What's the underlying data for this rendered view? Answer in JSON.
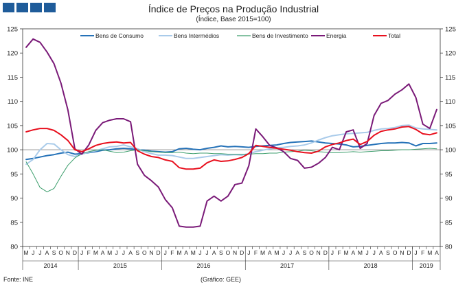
{
  "chart_data": {
    "type": "line",
    "title": "Índice de Preços na Produção Industrial",
    "subtitle": "(Índice, Base 2015=100)",
    "source": "Fonte: INE",
    "credit": "(Gráfico: GEE)",
    "ylim": [
      80,
      125
    ],
    "yticks": [
      80,
      85,
      90,
      95,
      100,
      105,
      110,
      115,
      120,
      125
    ],
    "months": [
      "M",
      "J",
      "J",
      "A",
      "S",
      "O",
      "N",
      "D",
      "J",
      "F",
      "M",
      "A",
      "M",
      "J",
      "J",
      "A",
      "S",
      "O",
      "N",
      "D",
      "J",
      "F",
      "M",
      "A",
      "M",
      "J",
      "J",
      "A",
      "S",
      "O",
      "N",
      "D",
      "J",
      "F",
      "M",
      "A",
      "M",
      "J",
      "J",
      "A",
      "S",
      "O",
      "N",
      "D",
      "J",
      "F",
      "M",
      "A",
      "M",
      "J",
      "J",
      "A",
      "S",
      "O",
      "N",
      "D",
      "J",
      "F",
      "M",
      "A"
    ],
    "years": [
      {
        "label": "2014",
        "start": 0,
        "end": 7
      },
      {
        "label": "2015",
        "start": 8,
        "end": 19
      },
      {
        "label": "2016",
        "start": 20,
        "end": 31
      },
      {
        "label": "2017",
        "start": 32,
        "end": 43
      },
      {
        "label": "2018",
        "start": 44,
        "end": 55
      },
      {
        "label": "2019",
        "start": 56,
        "end": 59
      }
    ],
    "series": [
      {
        "name": "Bens de Consumo",
        "color": "#2572b8",
        "width": 2,
        "values": [
          98.0,
          98.2,
          98.5,
          98.8,
          99.0,
          99.3,
          99.5,
          99.1,
          99.2,
          99.4,
          99.6,
          99.9,
          100.0,
          100.2,
          100.3,
          100.2,
          100.0,
          99.9,
          99.7,
          99.6,
          99.5,
          99.6,
          100.2,
          100.3,
          100.1,
          100.0,
          100.3,
          100.5,
          100.8,
          100.6,
          100.7,
          100.6,
          100.5,
          100.7,
          100.8,
          100.9,
          101.0,
          101.3,
          101.5,
          101.6,
          101.7,
          101.8,
          101.6,
          101.4,
          101.3,
          101.2,
          101.0,
          100.6,
          100.7,
          100.9,
          101.1,
          101.3,
          101.4,
          101.4,
          101.5,
          101.4,
          100.8,
          101.3,
          101.3,
          101.4
        ]
      },
      {
        "name": "Bens Intermédios",
        "color": "#a9cbea",
        "width": 2,
        "values": [
          97.0,
          98.0,
          100.0,
          101.3,
          101.2,
          100.0,
          99.0,
          98.6,
          99.1,
          99.5,
          99.8,
          100.2,
          100.6,
          100.7,
          101.0,
          100.6,
          100.2,
          99.6,
          99.2,
          98.9,
          98.9,
          98.8,
          98.5,
          98.2,
          98.2,
          98.4,
          98.6,
          98.8,
          99.0,
          98.9,
          99.0,
          98.9,
          99.2,
          99.6,
          99.9,
          100.2,
          100.4,
          100.5,
          100.7,
          100.8,
          101.0,
          101.4,
          102.0,
          102.5,
          102.9,
          103.1,
          103.3,
          103.4,
          103.5,
          103.6,
          104.0,
          104.3,
          104.4,
          104.6,
          105.0,
          105.1,
          104.5,
          104.3,
          104.2,
          104.1
        ]
      },
      {
        "name": "Bens de Investimento",
        "color": "#3c9e6c",
        "width": 1,
        "values": [
          97.5,
          95.0,
          92.2,
          91.3,
          92.0,
          94.5,
          96.8,
          98.3,
          99.2,
          99.6,
          99.9,
          100.0,
          99.7,
          99.4,
          99.5,
          99.8,
          100.0,
          99.8,
          99.6,
          99.5,
          99.4,
          99.4,
          99.5,
          99.3,
          99.2,
          99.3,
          99.3,
          99.2,
          99.2,
          99.1,
          99.1,
          99.1,
          99.1,
          99.2,
          99.2,
          99.3,
          99.3,
          99.5,
          99.6,
          99.7,
          99.9,
          99.8,
          99.6,
          99.5,
          99.4,
          99.4,
          99.5,
          99.6,
          99.5,
          99.6,
          99.7,
          99.8,
          99.8,
          99.9,
          100.0,
          100.0,
          100.1,
          100.2,
          100.3,
          100.2
        ]
      },
      {
        "name": "Energia",
        "color": "#7a1a78",
        "width": 2,
        "values": [
          121.2,
          122.9,
          122.2,
          120.2,
          117.8,
          113.8,
          108.2,
          100.2,
          99.1,
          101.0,
          104.0,
          105.6,
          106.1,
          106.4,
          106.4,
          105.8,
          97.0,
          94.7,
          93.6,
          92.3,
          89.7,
          88.0,
          84.2,
          84.0,
          84.0,
          84.2,
          89.4,
          90.4,
          89.4,
          90.4,
          92.8,
          93.1,
          96.7,
          104.3,
          102.7,
          100.9,
          100.4,
          99.6,
          98.2,
          97.8,
          96.2,
          96.4,
          97.2,
          98.4,
          100.5,
          100.0,
          103.7,
          104.1,
          100.3,
          101.3,
          107.1,
          109.6,
          110.2,
          111.5,
          112.4,
          113.6,
          110.8,
          105.3,
          104.4,
          108.3
        ]
      },
      {
        "name": "Total",
        "color": "#e8101e",
        "width": 2,
        "values": [
          103.7,
          104.1,
          104.4,
          104.4,
          104.0,
          103.1,
          101.9,
          100.0,
          99.6,
          100.2,
          100.9,
          101.3,
          101.5,
          101.6,
          101.4,
          101.5,
          99.8,
          99.1,
          98.6,
          98.4,
          97.9,
          97.6,
          96.3,
          96.0,
          96.0,
          96.2,
          97.3,
          97.9,
          97.6,
          97.7,
          98.0,
          98.4,
          99.2,
          100.9,
          100.7,
          100.5,
          100.3,
          100.1,
          99.9,
          99.6,
          99.4,
          99.3,
          99.7,
          100.6,
          101.1,
          101.4,
          101.9,
          102.2,
          101.1,
          101.7,
          103.0,
          103.8,
          104.1,
          104.3,
          104.7,
          104.8,
          104.2,
          103.3,
          103.1,
          103.5
        ]
      }
    ]
  }
}
